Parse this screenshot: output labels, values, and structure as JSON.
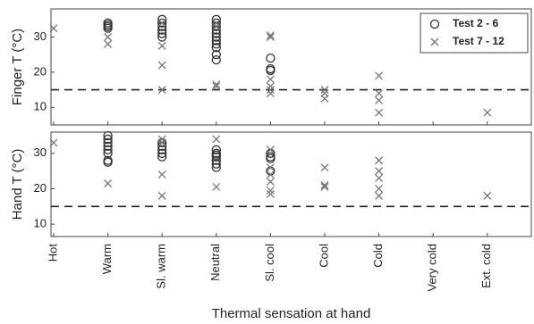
{
  "chart_data": [
    {
      "type": "scatter",
      "ylabel": "Finger T (°C)",
      "ylim": [
        5,
        38
      ],
      "yticks": [
        10,
        20,
        30
      ],
      "hline": 15,
      "legend": "upper right",
      "series": [
        {
          "name": "Test 2 - 6",
          "marker": "circle",
          "color": "#333333",
          "x": [
            "Warm",
            "Warm",
            "Warm",
            "Warm",
            "Sl. warm",
            "Sl. warm",
            "Sl. warm",
            "Sl. warm",
            "Sl. warm",
            "Sl. warm",
            "Neutral",
            "Neutral",
            "Neutral",
            "Neutral",
            "Neutral",
            "Neutral",
            "Neutral",
            "Neutral",
            "Neutral",
            "Neutral",
            "Neutral",
            "Sl. cool",
            "Sl. cool",
            "Sl. cool"
          ],
          "values": [
            34,
            33.5,
            33,
            32.5,
            35,
            34,
            33,
            32,
            31,
            30,
            35,
            34,
            33,
            32,
            31,
            30,
            29,
            28,
            27,
            25,
            23.5,
            24,
            21,
            20.5
          ]
        },
        {
          "name": "Test 7 - 12",
          "marker": "x",
          "color": "#777777",
          "x": [
            "Hot",
            "Warm",
            "Warm",
            "Sl. warm",
            "Sl. warm",
            "Sl. warm",
            "Sl. warm",
            "Neutral",
            "Neutral",
            "Neutral",
            "Neutral",
            "Sl. cool",
            "Sl. cool",
            "Sl. cool",
            "Sl. cool",
            "Sl. cool",
            "Sl. cool",
            "Cool",
            "Cool",
            "Cool",
            "Cold",
            "Cold",
            "Cold",
            "Cold",
            "Ext. cold"
          ],
          "values": [
            32.5,
            30,
            28,
            34,
            27.5,
            22,
            15,
            34,
            33,
            16.5,
            16,
            30.5,
            30,
            18,
            16,
            15,
            14,
            15,
            14,
            12.5,
            19,
            14,
            12,
            8.5,
            8.5
          ]
        }
      ]
    },
    {
      "type": "scatter",
      "ylabel": "Hand T (°C)",
      "xlabel": "Thermal sensation at hand",
      "ylim": [
        6.5,
        36
      ],
      "yticks": [
        10,
        20,
        30
      ],
      "hline": 15,
      "categories": [
        "Hot",
        "Warm",
        "Sl. warm",
        "Neutral",
        "Sl. cool",
        "Cool",
        "Cold",
        "Very cold",
        "Ext. cold"
      ],
      "series": [
        {
          "marker": "circle",
          "color": "#333333",
          "x": [
            "Warm",
            "Warm",
            "Warm",
            "Warm",
            "Warm",
            "Warm",
            "Warm",
            "Warm",
            "Sl. warm",
            "Sl. warm",
            "Sl. warm",
            "Sl. warm",
            "Sl. warm",
            "Neutral",
            "Neutral",
            "Neutral",
            "Neutral",
            "Neutral",
            "Neutral",
            "Neutral",
            "Sl. cool",
            "Sl. cool",
            "Sl. cool",
            "Sl. cool"
          ],
          "values": [
            35,
            34,
            33,
            32,
            31,
            30,
            28,
            27.5,
            33,
            32,
            31,
            30,
            29,
            31,
            30,
            29.5,
            29,
            28,
            27,
            26,
            30,
            29,
            28.5,
            25
          ]
        },
        {
          "marker": "x",
          "color": "#777777",
          "x": [
            "Hot",
            "Warm",
            "Sl. warm",
            "Sl. warm",
            "Sl. warm",
            "Sl. warm",
            "Neutral",
            "Neutral",
            "Sl. cool",
            "Sl. cool",
            "Sl. cool",
            "Sl. cool",
            "Sl. cool",
            "Sl. cool",
            "Cool",
            "Cool",
            "Cool",
            "Cold",
            "Cold",
            "Cold",
            "Cold",
            "Cold",
            "Ext. cold"
          ],
          "values": [
            33,
            21.5,
            34,
            33,
            24,
            18,
            34,
            20.5,
            31,
            26,
            24,
            22,
            19.5,
            18.5,
            26,
            21,
            20.5,
            28,
            25,
            23,
            20,
            18,
            18
          ]
        }
      ]
    }
  ]
}
